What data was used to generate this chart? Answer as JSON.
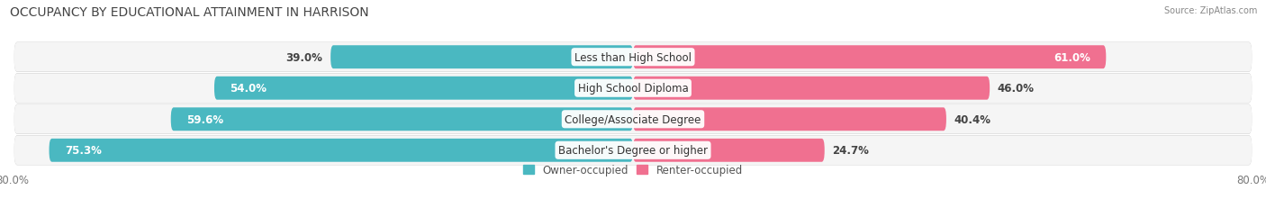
{
  "title": "OCCUPANCY BY EDUCATIONAL ATTAINMENT IN HARRISON",
  "source": "Source: ZipAtlas.com",
  "categories": [
    "Less than High School",
    "High School Diploma",
    "College/Associate Degree",
    "Bachelor's Degree or higher"
  ],
  "owner_values": [
    39.0,
    54.0,
    59.6,
    75.3
  ],
  "renter_values": [
    61.0,
    46.0,
    40.4,
    24.7
  ],
  "owner_color": "#4ab8c1",
  "renter_color": "#f07090",
  "owner_label": "Owner-occupied",
  "renter_label": "Renter-occupied",
  "xlim": 80.0,
  "axis_label_left": "80.0%",
  "axis_label_right": "80.0%",
  "row_bg_light": "#f2f2f2",
  "row_bg_dark": "#e8e8e8",
  "row_border": "#d8d8d8",
  "title_fontsize": 10,
  "label_fontsize": 8.5,
  "bar_label_fontsize": 8.5,
  "cat_label_fontsize": 8.5,
  "figsize": [
    14.06,
    2.32
  ],
  "dpi": 100
}
